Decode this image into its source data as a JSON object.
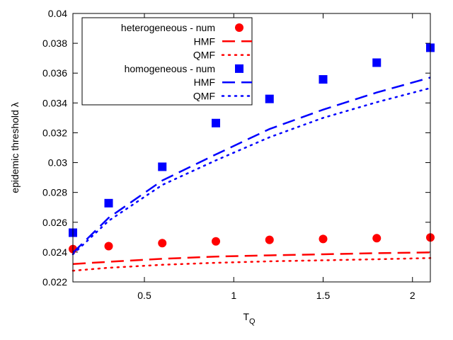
{
  "chart_data": {
    "type": "scatter",
    "title": "",
    "xlabel": "T",
    "xlabel_sub": "Q",
    "ylabel": "epidemic threshold λ",
    "xlim": [
      0.1,
      2.1
    ],
    "ylim": [
      0.022,
      0.04
    ],
    "xticks": [
      0.5,
      1,
      1.5,
      2
    ],
    "xtick_labels": [
      "0.5",
      "1",
      "1.5",
      "2"
    ],
    "yticks": [
      0.022,
      0.024,
      0.026,
      0.028,
      0.03,
      0.032,
      0.034,
      0.036,
      0.038,
      0.04
    ],
    "ytick_labels": [
      "0.022",
      "0.024",
      "0.026",
      "0.028",
      "0.03",
      "0.032",
      "0.034",
      "0.036",
      "0.038",
      "0.04"
    ],
    "grid": false,
    "legend_position": "top-left",
    "series": [
      {
        "name": "heterogeneous - num",
        "style": "circle-points",
        "color": "#ff0000",
        "x": [
          0.1,
          0.3,
          0.6,
          0.9,
          1.2,
          1.5,
          1.8,
          2.1
        ],
        "y": [
          0.0242,
          0.0244,
          0.0246,
          0.02472,
          0.02482,
          0.02488,
          0.02493,
          0.02498
        ]
      },
      {
        "name": "HMF",
        "style": "dashed-line",
        "color": "#ff0000",
        "x": [
          0.1,
          0.3,
          0.6,
          0.9,
          1.2,
          1.5,
          1.8,
          2.1
        ],
        "y": [
          0.0232,
          0.02335,
          0.02355,
          0.0237,
          0.02378,
          0.02385,
          0.02393,
          0.02398
        ]
      },
      {
        "name": "QMF",
        "style": "dotted-line",
        "color": "#ff0000",
        "x": [
          0.1,
          0.3,
          0.6,
          0.9,
          1.2,
          1.5,
          1.8,
          2.1
        ],
        "y": [
          0.02275,
          0.02295,
          0.02315,
          0.02328,
          0.02338,
          0.02345,
          0.02352,
          0.0236
        ]
      },
      {
        "name": "homogeneous - num",
        "style": "square-points",
        "color": "#0000ff",
        "x": [
          0.1,
          0.3,
          0.6,
          0.9,
          1.2,
          1.5,
          1.8,
          2.1
        ],
        "y": [
          0.0253,
          0.02728,
          0.02972,
          0.03265,
          0.03427,
          0.03558,
          0.0367,
          0.0377
        ]
      },
      {
        "name": "HMF",
        "style": "dashed-line",
        "color": "#0000ff",
        "x": [
          0.1,
          0.3,
          0.6,
          0.9,
          1.2,
          1.5,
          1.8,
          2.1
        ],
        "y": [
          0.02395,
          0.0263,
          0.0288,
          0.03055,
          0.03225,
          0.03355,
          0.0347,
          0.0357
        ]
      },
      {
        "name": "QMF",
        "style": "dotted-line",
        "color": "#0000ff",
        "x": [
          0.1,
          0.3,
          0.6,
          0.9,
          1.2,
          1.5,
          1.8,
          2.1
        ],
        "y": [
          0.02385,
          0.0261,
          0.0285,
          0.03015,
          0.0317,
          0.033,
          0.03405,
          0.035
        ]
      }
    ]
  }
}
